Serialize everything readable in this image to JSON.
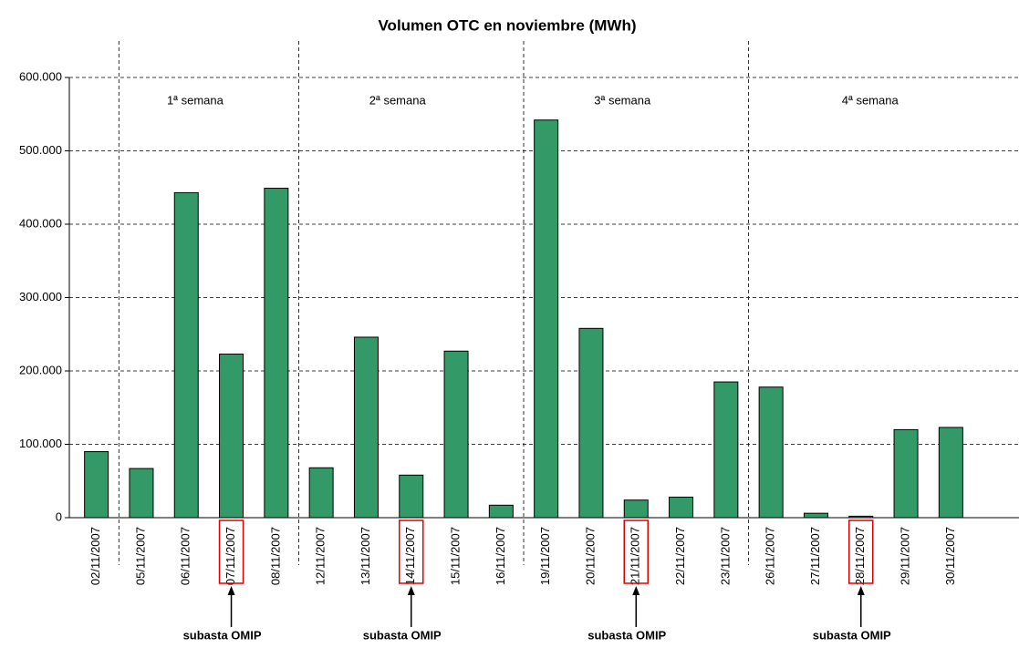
{
  "chart_data": {
    "type": "bar",
    "title": "Volumen OTC en noviembre (MWh)",
    "categories": [
      "02/11/2007",
      "05/11/2007",
      "06/11/2007",
      "07/11/2007",
      "08/11/2007",
      "12/11/2007",
      "13/11/2007",
      "14/11/2007",
      "15/11/2007",
      "16/11/2007",
      "19/11/2007",
      "20/11/2007",
      "21/11/2007",
      "22/11/2007",
      "23/11/2007",
      "26/11/2007",
      "27/11/2007",
      "28/11/2007",
      "29/11/2007",
      "30/11/2007"
    ],
    "values": [
      90000,
      67000,
      443000,
      223000,
      449000,
      68000,
      246000,
      58000,
      227000,
      17000,
      542000,
      258000,
      24000,
      28000,
      185000,
      178000,
      6000,
      2000,
      120000,
      123000
    ],
    "color": "#339966",
    "ylim": [
      0,
      600000
    ],
    "yticks": [
      0,
      {
        "value": 100000,
        "label": "100.000"
      },
      {
        "value": 200000,
        "label": "200.000"
      },
      {
        "value": 300000,
        "label": "300.000"
      },
      {
        "value": 400000,
        "label": "400.000"
      },
      {
        "value": 500000,
        "label": "500.000"
      },
      {
        "value": 600000,
        "label": "600.000"
      }
    ],
    "grid": true,
    "week_labels": [
      "1ª semana",
      "2ª semana",
      "3ª semana",
      "4ª semana"
    ],
    "annotations": [
      "subasta OMIP",
      "subasta OMIP",
      "subasta OMIP",
      "subasta OMIP"
    ]
  }
}
